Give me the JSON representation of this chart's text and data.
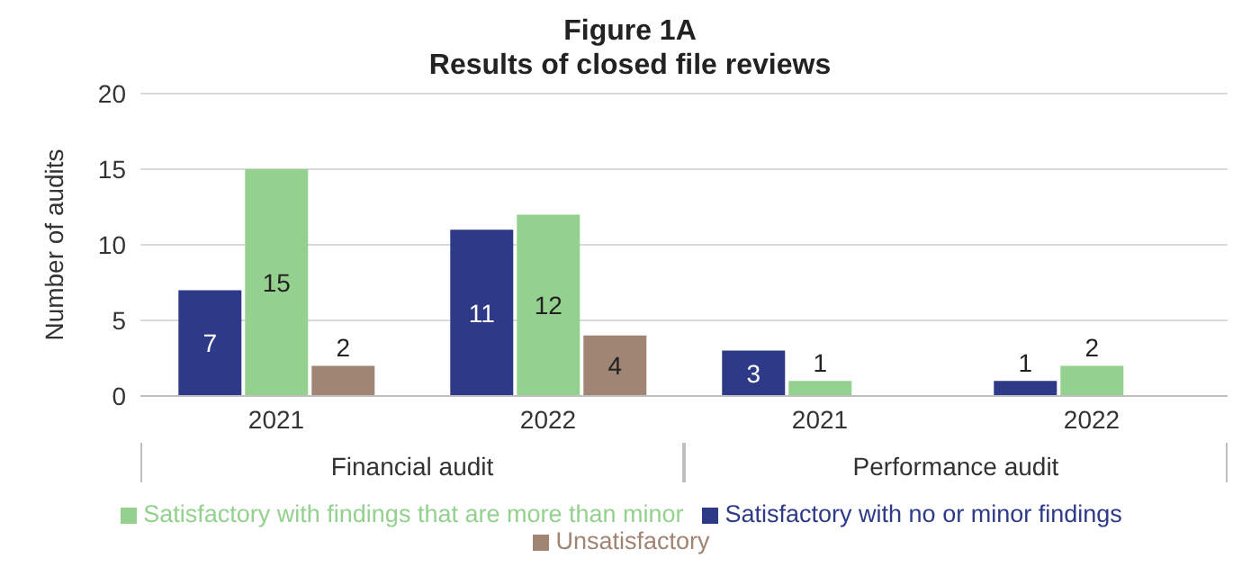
{
  "chart_data": {
    "type": "bar",
    "title": "Figure 1A",
    "subtitle": "Results of closed file reviews",
    "ylabel": "Number of audits",
    "categories": [
      "2021",
      "2022",
      "2021",
      "2022"
    ],
    "annotations": [
      "Financial audit",
      "Performance audit"
    ],
    "series": [
      {
        "name": "Satisfactory with no or minor findings",
        "color": "#2e3a87",
        "values": [
          7,
          11,
          3,
          1
        ]
      },
      {
        "name": "Satisfactory with findings that are more than minor",
        "color": "#94d18e",
        "values": [
          15,
          12,
          1,
          2
        ]
      },
      {
        "name": "Unsatisfactory",
        "color": "#a08474",
        "values": [
          2,
          4,
          null,
          null
        ]
      }
    ],
    "ylim": [
      0,
      20
    ],
    "yticks": [
      0,
      5,
      10,
      15,
      20
    ],
    "grid": "y",
    "legend": "bottom",
    "data_labels": true
  }
}
